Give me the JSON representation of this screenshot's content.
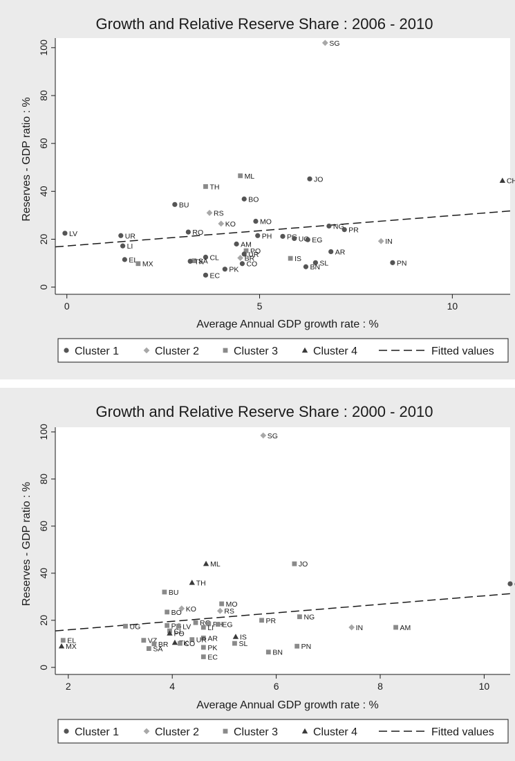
{
  "colors": {
    "Cluster 1": "#555555",
    "Cluster 2": "#a8a8a8",
    "Cluster 3": "#8a8a8a",
    "Cluster 4": "#3a3a3a",
    "fit": "#1a1a1a",
    "background": "#ebebeb",
    "plot_background": "#ffffff"
  },
  "chart_data": [
    {
      "type": "scatter",
      "title": "Growth and Relative Reserve Share : 2006 - 2010",
      "xlabel": "Average Annual GDP growth rate : %",
      "ylabel": "Reserves - GDP ratio : %",
      "xlim": [
        -0.3,
        11.5
      ],
      "ylim": [
        -3,
        104
      ],
      "xticks": [
        0,
        5,
        10
      ],
      "yticks": [
        0,
        20,
        40,
        60,
        80,
        100
      ],
      "grid": false,
      "legend": {
        "position": "bottom",
        "entries": [
          "Cluster 1",
          "Cluster 2",
          "Cluster 3",
          "Cluster 4",
          "Fitted values"
        ]
      },
      "fitted": {
        "name": "Fitted values",
        "x": [
          -0.3,
          11.5
        ],
        "y": [
          16.8,
          31.8
        ]
      },
      "points": [
        {
          "label": "SG",
          "x": 6.7,
          "y": 102,
          "cluster": "Cluster 2"
        },
        {
          "label": "CH",
          "x": 11.3,
          "y": 44.5,
          "cluster": "Cluster 4"
        },
        {
          "label": "ML",
          "x": 4.5,
          "y": 46.5,
          "cluster": "Cluster 3"
        },
        {
          "label": "JO",
          "x": 6.3,
          "y": 45.2,
          "cluster": "Cluster 1"
        },
        {
          "label": "TH",
          "x": 3.6,
          "y": 42,
          "cluster": "Cluster 3"
        },
        {
          "label": "BO",
          "x": 4.6,
          "y": 36.8,
          "cluster": "Cluster 1"
        },
        {
          "label": "BU",
          "x": 2.8,
          "y": 34.5,
          "cluster": "Cluster 1"
        },
        {
          "label": "RS",
          "x": 3.7,
          "y": 31,
          "cluster": "Cluster 2"
        },
        {
          "label": "MO",
          "x": 4.9,
          "y": 27.5,
          "cluster": "Cluster 1"
        },
        {
          "label": "KO",
          "x": 4.0,
          "y": 26.5,
          "cluster": "Cluster 2"
        },
        {
          "label": "NG",
          "x": 6.8,
          "y": 25.5,
          "cluster": "Cluster 1"
        },
        {
          "label": "PR",
          "x": 7.2,
          "y": 24,
          "cluster": "Cluster 1"
        },
        {
          "label": "RO",
          "x": 3.15,
          "y": 23,
          "cluster": "Cluster 1"
        },
        {
          "label": "LV",
          "x": -0.05,
          "y": 22.5,
          "cluster": "Cluster 1"
        },
        {
          "label": "UR",
          "x": 1.4,
          "y": 21.5,
          "cluster": "Cluster 1"
        },
        {
          "label": "PH",
          "x": 4.95,
          "y": 21.5,
          "cluster": "Cluster 1"
        },
        {
          "label": "PG",
          "x": 5.6,
          "y": 21.2,
          "cluster": "Cluster 1"
        },
        {
          "label": "UG",
          "x": 5.9,
          "y": 20.3,
          "cluster": "Cluster 1"
        },
        {
          "label": "EG",
          "x": 6.25,
          "y": 19.8,
          "cluster": "Cluster 1"
        },
        {
          "label": "IN",
          "x": 8.15,
          "y": 19.2,
          "cluster": "Cluster 2"
        },
        {
          "label": "AM",
          "x": 4.4,
          "y": 18,
          "cluster": "Cluster 1"
        },
        {
          "label": "LI",
          "x": 1.45,
          "y": 17.2,
          "cluster": "Cluster 1"
        },
        {
          "label": "PO",
          "x": 4.65,
          "y": 15.2,
          "cluster": "Cluster 3"
        },
        {
          "label": "AR",
          "x": 6.85,
          "y": 14.8,
          "cluster": "Cluster 1"
        },
        {
          "label": "UR",
          "x": 4.6,
          "y": 13.8,
          "cluster": "Cluster 1"
        },
        {
          "label": "CL",
          "x": 3.6,
          "y": 12.5,
          "cluster": "Cluster 1"
        },
        {
          "label": "BR",
          "x": 4.5,
          "y": 12.2,
          "cluster": "Cluster 2"
        },
        {
          "label": "IS",
          "x": 5.8,
          "y": 12,
          "cluster": "Cluster 3"
        },
        {
          "label": "EL",
          "x": 1.5,
          "y": 11.5,
          "cluster": "Cluster 1"
        },
        {
          "label": "SA",
          "x": 3.3,
          "y": 11,
          "cluster": "Cluster 3"
        },
        {
          "label": "TK",
          "x": 3.2,
          "y": 10.8,
          "cluster": "Cluster 1"
        },
        {
          "label": "SL",
          "x": 6.45,
          "y": 10.2,
          "cluster": "Cluster 1"
        },
        {
          "label": "PN",
          "x": 8.45,
          "y": 10.2,
          "cluster": "Cluster 1"
        },
        {
          "label": "CO",
          "x": 4.55,
          "y": 9.8,
          "cluster": "Cluster 1"
        },
        {
          "label": "MX",
          "x": 1.85,
          "y": 9.8,
          "cluster": "Cluster 3"
        },
        {
          "label": "BN",
          "x": 6.2,
          "y": 8.5,
          "cluster": "Cluster 1"
        },
        {
          "label": "PK",
          "x": 4.1,
          "y": 7.5,
          "cluster": "Cluster 1"
        },
        {
          "label": "EC",
          "x": 3.6,
          "y": 5,
          "cluster": "Cluster 1"
        }
      ]
    },
    {
      "type": "scatter",
      "title": "Growth and Relative Reserve Share : 2000 - 2010",
      "xlabel": "Average Annual GDP growth rate : %",
      "ylabel": "Reserves - GDP ratio : %",
      "xlim": [
        1.75,
        10.5
      ],
      "ylim": [
        -3,
        102
      ],
      "xticks": [
        2,
        4,
        6,
        8,
        10
      ],
      "yticks": [
        0,
        20,
        40,
        60,
        80,
        100
      ],
      "grid": false,
      "legend": {
        "position": "bottom",
        "entries": [
          "Cluster 1",
          "Cluster 2",
          "Cluster 3",
          "Cluster 4",
          "Fitted values"
        ]
      },
      "fitted": {
        "name": "Fitted values",
        "x": [
          1.75,
          10.5
        ],
        "y": [
          15.5,
          31.3
        ]
      },
      "points": [
        {
          "label": "SG",
          "x": 5.75,
          "y": 98.5,
          "cluster": "Cluster 2"
        },
        {
          "label": "ML",
          "x": 4.65,
          "y": 44,
          "cluster": "Cluster 4"
        },
        {
          "label": "JO",
          "x": 6.35,
          "y": 44,
          "cluster": "Cluster 3"
        },
        {
          "label": "TH",
          "x": 4.38,
          "y": 36,
          "cluster": "Cluster 4"
        },
        {
          "label": "CH",
          "x": 10.5,
          "y": 35.5,
          "cluster": "Cluster 1"
        },
        {
          "label": "BU",
          "x": 3.85,
          "y": 32,
          "cluster": "Cluster 3"
        },
        {
          "label": "MO",
          "x": 4.95,
          "y": 27,
          "cluster": "Cluster 3"
        },
        {
          "label": "KO",
          "x": 4.18,
          "y": 25,
          "cluster": "Cluster 2"
        },
        {
          "label": "BO",
          "x": 3.9,
          "y": 23.5,
          "cluster": "Cluster 3"
        },
        {
          "label": "RS",
          "x": 4.92,
          "y": 24,
          "cluster": "Cluster 2"
        },
        {
          "label": "NG",
          "x": 6.45,
          "y": 21.5,
          "cluster": "Cluster 3"
        },
        {
          "label": "PR",
          "x": 5.72,
          "y": 20,
          "cluster": "Cluster 3"
        },
        {
          "label": "RO",
          "x": 4.45,
          "y": 19,
          "cluster": "Cluster 3"
        },
        {
          "label": "PH",
          "x": 4.7,
          "y": 18.5,
          "cluster": "Cluster 3"
        },
        {
          "label": "EG",
          "x": 4.88,
          "y": 18.3,
          "cluster": "Cluster 3"
        },
        {
          "label": "UG",
          "x": 3.1,
          "y": 17.5,
          "cluster": "Cluster 3"
        },
        {
          "label": "PG",
          "x": 3.9,
          "y": 17.8,
          "cluster": "Cluster 3"
        },
        {
          "label": "LV",
          "x": 4.12,
          "y": 17.5,
          "cluster": "Cluster 3"
        },
        {
          "label": "LI",
          "x": 4.6,
          "y": 17,
          "cluster": "Cluster 3"
        },
        {
          "label": "IN",
          "x": 7.45,
          "y": 17,
          "cluster": "Cluster 2"
        },
        {
          "label": "AM",
          "x": 8.3,
          "y": 17,
          "cluster": "Cluster 3"
        },
        {
          "label": "CL",
          "x": 3.95,
          "y": 15.5,
          "cluster": "Cluster 3"
        },
        {
          "label": "PO",
          "x": 3.95,
          "y": 14.5,
          "cluster": "Cluster 4"
        },
        {
          "label": "IS",
          "x": 5.22,
          "y": 13,
          "cluster": "Cluster 4"
        },
        {
          "label": "AR",
          "x": 4.6,
          "y": 12.5,
          "cluster": "Cluster 3"
        },
        {
          "label": "UR",
          "x": 4.38,
          "y": 11.8,
          "cluster": "Cluster 3"
        },
        {
          "label": "VZ",
          "x": 3.45,
          "y": 11.5,
          "cluster": "Cluster 3"
        },
        {
          "label": "EL",
          "x": 1.9,
          "y": 11.5,
          "cluster": "Cluster 3"
        },
        {
          "label": "TK",
          "x": 4.05,
          "y": 10.5,
          "cluster": "Cluster 4"
        },
        {
          "label": "CO",
          "x": 4.15,
          "y": 10.2,
          "cluster": "Cluster 3"
        },
        {
          "label": "BR",
          "x": 3.65,
          "y": 10,
          "cluster": "Cluster 3"
        },
        {
          "label": "SL",
          "x": 5.2,
          "y": 10.2,
          "cluster": "Cluster 3"
        },
        {
          "label": "MX",
          "x": 1.87,
          "y": 9,
          "cluster": "Cluster 4"
        },
        {
          "label": "PN",
          "x": 6.4,
          "y": 9,
          "cluster": "Cluster 3"
        },
        {
          "label": "PK",
          "x": 4.6,
          "y": 8.5,
          "cluster": "Cluster 3"
        },
        {
          "label": "SA",
          "x": 3.55,
          "y": 8,
          "cluster": "Cluster 3"
        },
        {
          "label": "BN",
          "x": 5.85,
          "y": 6.5,
          "cluster": "Cluster 3"
        },
        {
          "label": "EC",
          "x": 4.6,
          "y": 4.5,
          "cluster": "Cluster 3"
        }
      ]
    }
  ]
}
